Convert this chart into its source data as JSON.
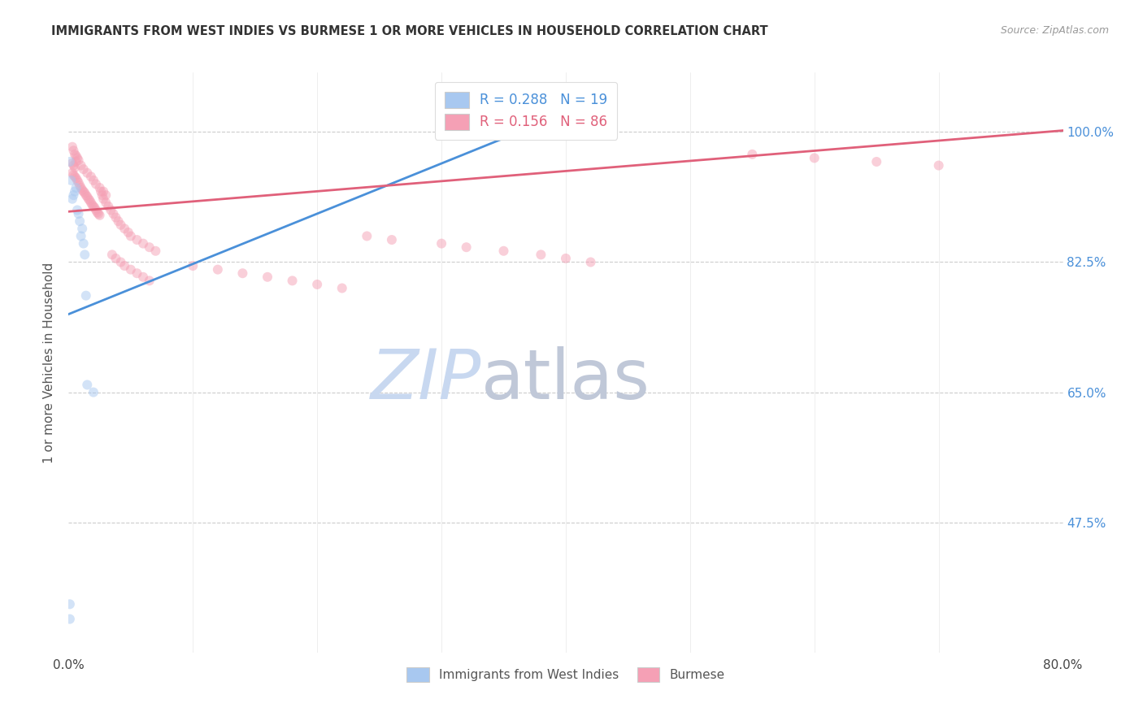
{
  "title": "IMMIGRANTS FROM WEST INDIES VS BURMESE 1 OR MORE VEHICLES IN HOUSEHOLD CORRELATION CHART",
  "source": "Source: ZipAtlas.com",
  "ylabel": "1 or more Vehicles in Household",
  "ytick_labels": [
    "100.0%",
    "82.5%",
    "65.0%",
    "47.5%"
  ],
  "ytick_values": [
    1.0,
    0.825,
    0.65,
    0.475
  ],
  "xlim": [
    0.0,
    0.8
  ],
  "ylim": [
    0.3,
    1.08
  ],
  "legend_blue_r": "0.288",
  "legend_blue_n": "19",
  "legend_pink_r": "0.156",
  "legend_pink_n": "86",
  "blue_scatter_x": [
    0.001,
    0.002,
    0.003,
    0.004,
    0.005,
    0.006,
    0.007,
    0.008,
    0.009,
    0.01,
    0.011,
    0.012,
    0.013,
    0.014,
    0.015,
    0.02,
    0.001,
    0.001
  ],
  "blue_scatter_y": [
    0.96,
    0.935,
    0.91,
    0.915,
    0.92,
    0.925,
    0.895,
    0.89,
    0.88,
    0.86,
    0.87,
    0.85,
    0.835,
    0.78,
    0.66,
    0.65,
    0.365,
    0.345
  ],
  "pink_scatter_x": [
    0.003,
    0.004,
    0.005,
    0.006,
    0.007,
    0.008,
    0.003,
    0.004,
    0.005,
    0.006,
    0.003,
    0.004,
    0.005,
    0.006,
    0.007,
    0.008,
    0.009,
    0.01,
    0.011,
    0.012,
    0.013,
    0.014,
    0.015,
    0.016,
    0.017,
    0.018,
    0.019,
    0.02,
    0.021,
    0.022,
    0.023,
    0.024,
    0.025,
    0.026,
    0.027,
    0.028,
    0.03,
    0.032,
    0.034,
    0.036,
    0.038,
    0.04,
    0.042,
    0.045,
    0.048,
    0.05,
    0.055,
    0.06,
    0.065,
    0.07,
    0.01,
    0.012,
    0.015,
    0.018,
    0.02,
    0.022,
    0.025,
    0.028,
    0.03,
    0.035,
    0.038,
    0.042,
    0.045,
    0.05,
    0.055,
    0.06,
    0.065,
    0.1,
    0.12,
    0.14,
    0.16,
    0.18,
    0.2,
    0.22,
    0.24,
    0.26,
    0.3,
    0.32,
    0.35,
    0.38,
    0.4,
    0.42,
    0.55,
    0.6,
    0.65,
    0.7
  ],
  "pink_scatter_y": [
    0.98,
    0.975,
    0.97,
    0.968,
    0.965,
    0.962,
    0.958,
    0.955,
    0.952,
    0.96,
    0.945,
    0.942,
    0.94,
    0.938,
    0.935,
    0.932,
    0.928,
    0.925,
    0.922,
    0.92,
    0.918,
    0.915,
    0.913,
    0.91,
    0.908,
    0.905,
    0.902,
    0.9,
    0.898,
    0.895,
    0.892,
    0.89,
    0.888,
    0.92,
    0.915,
    0.91,
    0.905,
    0.9,
    0.895,
    0.89,
    0.885,
    0.88,
    0.875,
    0.87,
    0.865,
    0.86,
    0.855,
    0.85,
    0.845,
    0.84,
    0.955,
    0.95,
    0.945,
    0.94,
    0.935,
    0.93,
    0.925,
    0.92,
    0.915,
    0.835,
    0.83,
    0.825,
    0.82,
    0.815,
    0.81,
    0.805,
    0.8,
    0.82,
    0.815,
    0.81,
    0.805,
    0.8,
    0.795,
    0.79,
    0.86,
    0.855,
    0.85,
    0.845,
    0.84,
    0.835,
    0.83,
    0.825,
    0.97,
    0.965,
    0.96,
    0.955
  ],
  "blue_line_x": [
    0.0,
    0.37
  ],
  "blue_line_y": [
    0.755,
    1.005
  ],
  "pink_line_x": [
    0.0,
    0.8
  ],
  "pink_line_y": [
    0.893,
    1.002
  ],
  "scatter_alpha": 0.5,
  "scatter_size": 75,
  "blue_color": "#a8c8f0",
  "blue_line_color": "#4a90d9",
  "pink_color": "#f5a0b5",
  "pink_line_color": "#e0607a",
  "background_color": "#ffffff",
  "grid_color": "#cccccc",
  "title_color": "#333333",
  "axis_label_color": "#555555",
  "right_axis_color": "#4a90d9",
  "watermark_zip": "ZIP",
  "watermark_atlas": "atlas",
  "watermark_color_zip": "#c8d8f0",
  "watermark_color_atlas": "#c0c8d8"
}
